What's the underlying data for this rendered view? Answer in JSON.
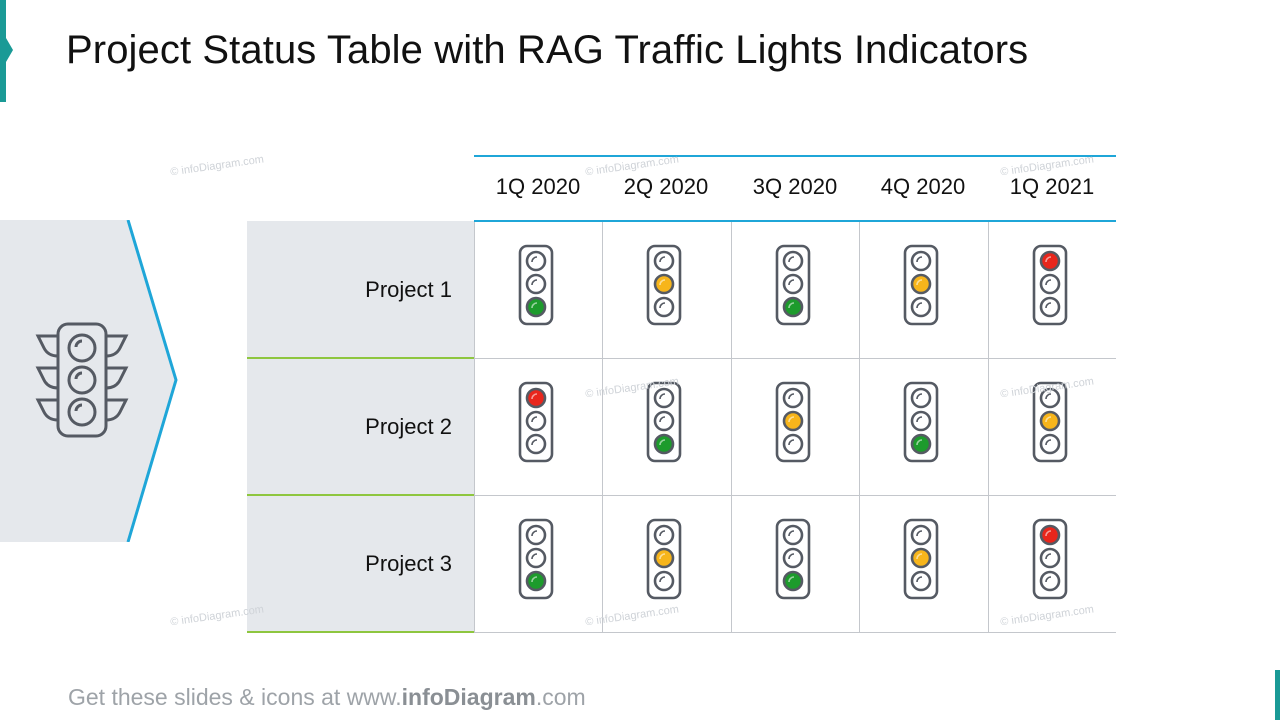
{
  "title": "Project Status Table with RAG Traffic Lights Indicators",
  "columns": [
    "1Q 2020",
    "2Q 2020",
    "3Q 2020",
    "4Q 2020",
    "1Q 2021"
  ],
  "rows": [
    {
      "label": "Project 1",
      "status": [
        "green",
        "amber",
        "green",
        "amber",
        "red"
      ]
    },
    {
      "label": "Project 2",
      "status": [
        "red",
        "green",
        "amber",
        "green",
        "amber"
      ]
    },
    {
      "label": "Project 3",
      "status": [
        "green",
        "amber",
        "green",
        "amber",
        "red"
      ]
    }
  ],
  "colors": {
    "red": "#e8261c",
    "amber": "#f7b51b",
    "green": "#1d9b2c",
    "accent": "#1a9a96",
    "header_rule": "#1fa6d8",
    "row_rule": "#8ec63f",
    "icon_stroke": "#555a63"
  },
  "side_icon": "traffic-light-icon",
  "watermark": "© infoDiagram.com",
  "footer": {
    "prefix": "Get these slides & icons at www.",
    "brand": "infoDiagram",
    "suffix": ".com"
  }
}
